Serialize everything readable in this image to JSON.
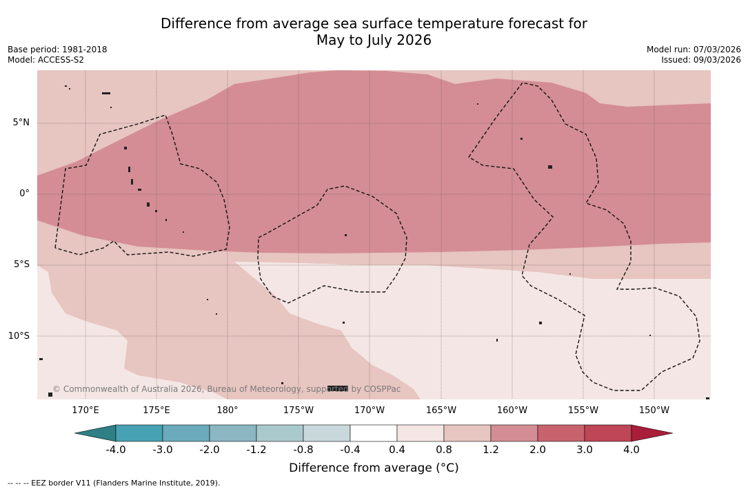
{
  "title_line1": "Difference from average sea surface temperature forecast for",
  "title_line2": "May to July 2026",
  "meta": {
    "base_period": "Base period: 1981-2018",
    "model": "Model: ACCESS-S2",
    "model_run": "Model run: 07/03/2026",
    "issued": "Issued: 09/03/2026"
  },
  "lat_labels": [
    "5°N",
    "0°",
    "5°S",
    "10°S"
  ],
  "lon_labels": [
    "170°E",
    "175°E",
    "180°",
    "175°W",
    "170°W",
    "165°W",
    "160°W",
    "155°W",
    "150°W"
  ],
  "credit": "© Commonwealth of Australia 2026, Bureau of Meteorology, supported by COSPPac",
  "colorbar": {
    "ticks": [
      "-4.0",
      "-3.0",
      "-2.0",
      "-1.2",
      "-0.8",
      "-0.4",
      "0.4",
      "0.8",
      "1.2",
      "2.0",
      "3.0",
      "4.0"
    ],
    "colors": [
      "#2e7f86",
      "#47a2b4",
      "#6babbd",
      "#8bb6c2",
      "#aac9cd",
      "#c8d8db",
      "#ffffff",
      "#f4e6e4",
      "#e7c5c0",
      "#d48d94",
      "#c8636e",
      "#be4656",
      "#a91e3a"
    ],
    "label": "Difference from average (°C)"
  },
  "footnote": "-- -- -- EEZ border V11 (Flanders Marine Institute, 2019)."
}
